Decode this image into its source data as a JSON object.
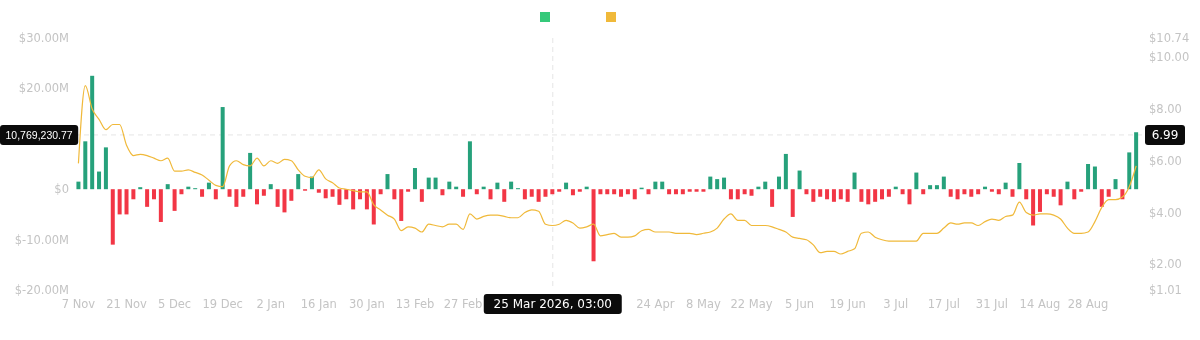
{
  "chart_data": {
    "type": "bar",
    "x": [
      "2025-11-07",
      "2025-11-09",
      "2025-11-11",
      "2025-11-13",
      "2025-11-15",
      "2025-11-17",
      "2025-11-19",
      "2025-11-21",
      "2025-11-23",
      "2025-11-25",
      "2025-11-27",
      "2025-11-29",
      "2025-12-01",
      "2025-12-03",
      "2025-12-05",
      "2025-12-07",
      "2025-12-09",
      "2025-12-11",
      "2025-12-13",
      "2025-12-15",
      "2025-12-17",
      "2025-12-19",
      "2025-12-21",
      "2025-12-23",
      "2025-12-25",
      "2025-12-27",
      "2025-12-29",
      "2025-12-31",
      "2026-01-02",
      "2026-01-04",
      "2026-01-06",
      "2026-01-08",
      "2026-01-10",
      "2026-01-12",
      "2026-01-14",
      "2026-01-16",
      "2026-01-18",
      "2026-01-20",
      "2026-01-22",
      "2026-01-24",
      "2026-01-26",
      "2026-01-28",
      "2026-01-30",
      "2026-02-01",
      "2026-02-03",
      "2026-02-05",
      "2026-02-07",
      "2026-02-09",
      "2026-02-11",
      "2026-02-13",
      "2026-02-15",
      "2026-02-17",
      "2026-02-19",
      "2026-02-21",
      "2026-02-23",
      "2026-02-25",
      "2026-02-27",
      "2026-03-01",
      "2026-03-03",
      "2026-03-05",
      "2026-03-07",
      "2026-03-09",
      "2026-03-11",
      "2026-03-13",
      "2026-03-15",
      "2026-03-17",
      "2026-03-19",
      "2026-03-21",
      "2026-03-23",
      "2026-03-25",
      "2026-03-27",
      "2026-03-29",
      "2026-03-31",
      "2026-04-02",
      "2026-04-04",
      "2026-04-06",
      "2026-04-08",
      "2026-04-10",
      "2026-04-12",
      "2026-04-14",
      "2026-04-16",
      "2026-04-18",
      "2026-04-20",
      "2026-04-22",
      "2026-04-24",
      "2026-04-26",
      "2026-04-28",
      "2026-04-30",
      "2026-05-02",
      "2026-05-04",
      "2026-05-06",
      "2026-05-08",
      "2026-05-10",
      "2026-05-12",
      "2026-05-14",
      "2026-05-16",
      "2026-05-18",
      "2026-05-20",
      "2026-05-22",
      "2026-05-24",
      "2026-05-26",
      "2026-05-28",
      "2026-05-30",
      "2026-06-01",
      "2026-06-03",
      "2026-06-05",
      "2026-06-07",
      "2026-06-09",
      "2026-06-11",
      "2026-06-13",
      "2026-06-15",
      "2026-06-17",
      "2026-06-19",
      "2026-06-21",
      "2026-06-23",
      "2026-06-25",
      "2026-06-27",
      "2026-06-29",
      "2026-07-01",
      "2026-07-03",
      "2026-07-05",
      "2026-07-07",
      "2026-07-09",
      "2026-07-11",
      "2026-07-13",
      "2026-07-15",
      "2026-07-17",
      "2026-07-19",
      "2026-07-21",
      "2026-07-23",
      "2026-07-25",
      "2026-07-27",
      "2026-07-29",
      "2026-07-31",
      "2026-08-02",
      "2026-08-04",
      "2026-08-06",
      "2026-08-08",
      "2026-08-10",
      "2026-08-12",
      "2026-08-14",
      "2026-08-16",
      "2026-08-18",
      "2026-08-20",
      "2026-08-22",
      "2026-08-24",
      "2026-08-26",
      "2026-08-28",
      "2026-08-30",
      "2026-09-01",
      "2026-09-03",
      "2026-09-05",
      "2026-09-07",
      "2026-09-09",
      "2026-09-11"
    ],
    "series": [
      {
        "color": "#35c97a",
        "values": [
          1.5,
          9.5,
          22.5,
          3.5,
          8.3,
          -11,
          -5,
          -5,
          -2,
          0.4,
          -3.5,
          -2,
          -6.5,
          1,
          -4.3,
          -1,
          0.5,
          0.2,
          -1.5,
          1.3,
          -2,
          16.3,
          -1.5,
          -3.5,
          -1.5,
          7.2,
          -3,
          -1.3,
          1,
          -3.5,
          -4.6,
          -2.3,
          3,
          -0.3,
          2.5,
          -0.7,
          -1.8,
          -1.5,
          -3.1,
          -2,
          -4,
          -2,
          -4,
          -7,
          -1,
          3,
          -2,
          -6.3,
          -0.5,
          4.2,
          -2.5,
          2.3,
          2.3,
          -1.2,
          1.5,
          0.5,
          -1.5,
          9.5,
          -1,
          0.5,
          -2,
          1.3,
          -2.5,
          1.5,
          0.2,
          -2,
          -1.5,
          -2.5,
          -1.5,
          -1,
          -0.5,
          1.3,
          -1.2,
          -0.5,
          0.5,
          -14.3,
          -1,
          -1,
          -1,
          -1.5,
          -1,
          -2,
          0.3,
          -1,
          1.5,
          1.5,
          -1,
          -1,
          -1,
          -0.5,
          -0.5,
          -0.5,
          2.5,
          2,
          2.3,
          -2,
          -2,
          -1,
          -1.3,
          0.5,
          1.5,
          -3.5,
          2.5,
          7,
          -5.5,
          3.7,
          -1,
          -2.5,
          -1.5,
          -2,
          -2.5,
          -2,
          -2.5,
          3.3,
          -2.5,
          -3,
          -2.5,
          -2,
          -1.5,
          0.5,
          -1,
          -3,
          3.3,
          -1,
          0.8,
          0.8,
          2.5,
          -1.5,
          -2,
          -1,
          -1.5,
          -1,
          0.5,
          -0.5,
          -1,
          1.3,
          -1.5,
          5.2,
          -2,
          -7.2,
          -4.5,
          -1,
          -1.5,
          -3.2,
          1.5,
          -2,
          -0.5,
          5,
          4.5,
          -3.5,
          -1.5,
          2,
          -2,
          7.3,
          11.3
        ],
        "colors": [
          "#26a17b",
          "#26a17b",
          "#26a17b",
          "#26a17b",
          "#26a17b",
          "#f23645",
          "#f23645",
          "#f23645",
          "#f23645",
          "#26a17b",
          "#f23645",
          "#f23645",
          "#f23645",
          "#26a17b",
          "#f23645",
          "#f23645",
          "#26a17b",
          "#26a17b",
          "#f23645",
          "#26a17b",
          "#f23645",
          "#26a17b",
          "#f23645",
          "#f23645",
          "#f23645",
          "#26a17b",
          "#f23645",
          "#f23645",
          "#26a17b",
          "#f23645",
          "#f23645",
          "#f23645",
          "#26a17b",
          "#f23645",
          "#26a17b",
          "#f23645",
          "#f23645",
          "#f23645",
          "#f23645",
          "#f23645",
          "#f23645",
          "#f23645",
          "#f23645",
          "#f23645",
          "#f23645",
          "#26a17b",
          "#f23645",
          "#f23645",
          "#f23645",
          "#26a17b",
          "#f23645",
          "#26a17b",
          "#26a17b",
          "#f23645",
          "#26a17b",
          "#26a17b",
          "#f23645",
          "#26a17b",
          "#f23645",
          "#26a17b",
          "#f23645",
          "#26a17b",
          "#f23645",
          "#26a17b",
          "#26a17b",
          "#f23645",
          "#f23645",
          "#f23645",
          "#f23645",
          "#f23645",
          "#f23645",
          "#26a17b",
          "#f23645",
          "#f23645",
          "#26a17b",
          "#f23645",
          "#f23645",
          "#f23645",
          "#f23645",
          "#f23645",
          "#f23645",
          "#f23645",
          "#26a17b",
          "#f23645",
          "#26a17b",
          "#26a17b",
          "#f23645",
          "#f23645",
          "#f23645",
          "#f23645",
          "#f23645",
          "#f23645",
          "#26a17b",
          "#26a17b",
          "#26a17b",
          "#f23645",
          "#f23645",
          "#f23645",
          "#f23645",
          "#26a17b",
          "#26a17b",
          "#f23645",
          "#26a17b",
          "#26a17b",
          "#f23645",
          "#26a17b",
          "#f23645",
          "#f23645",
          "#f23645",
          "#f23645",
          "#f23645",
          "#f23645",
          "#f23645",
          "#26a17b",
          "#f23645",
          "#f23645",
          "#f23645",
          "#f23645",
          "#f23645",
          "#26a17b",
          "#f23645",
          "#f23645",
          "#26a17b",
          "#f23645",
          "#26a17b",
          "#26a17b",
          "#26a17b",
          "#f23645",
          "#f23645",
          "#f23645",
          "#f23645",
          "#f23645",
          "#26a17b",
          "#f23645",
          "#f23645",
          "#26a17b",
          "#f23645",
          "#26a17b",
          "#f23645",
          "#f23645",
          "#f23645",
          "#f23645",
          "#f23645",
          "#f23645",
          "#26a17b",
          "#f23645",
          "#f23645",
          "#26a17b",
          "#26a17b",
          "#f23645",
          "#f23645",
          "#26a17b",
          "#f23645",
          "#26a17b",
          "#26a17b"
        ]
      },
      {
        "type": "line",
        "axis": "y2",
        "color": "#f0b93a",
        "values": [
          5.9,
          8.9,
          8.0,
          7.6,
          7.2,
          7.4,
          7.4,
          6.6,
          6.2,
          6.25,
          6.2,
          6.1,
          6.0,
          6.1,
          5.6,
          5.6,
          5.65,
          5.55,
          5.45,
          5.25,
          5.05,
          5.0,
          5.8,
          6.0,
          5.85,
          5.8,
          6.1,
          5.8,
          6.0,
          5.9,
          6.05,
          6.0,
          5.65,
          5.4,
          5.35,
          5.65,
          5.3,
          5.15,
          4.95,
          4.9,
          4.85,
          4.8,
          4.8,
          4.3,
          4.1,
          3.9,
          3.75,
          3.3,
          3.45,
          3.4,
          3.25,
          3.55,
          3.5,
          3.45,
          3.55,
          3.55,
          3.35,
          3.95,
          3.75,
          3.85,
          3.9,
          3.9,
          3.85,
          3.8,
          3.8,
          4.0,
          4.1,
          4.05,
          3.55,
          3.5,
          3.55,
          3.7,
          3.6,
          3.4,
          3.45,
          3.55,
          3.1,
          3.15,
          3.2,
          3.05,
          3.05,
          3.1,
          3.3,
          3.35,
          3.25,
          3.25,
          3.25,
          3.2,
          3.2,
          3.2,
          3.15,
          3.2,
          3.25,
          3.4,
          3.75,
          3.95,
          3.7,
          3.7,
          3.5,
          3.5,
          3.5,
          3.45,
          3.35,
          3.25,
          3.05,
          3.0,
          2.95,
          2.75,
          2.45,
          2.5,
          2.5,
          2.4,
          2.5,
          2.6,
          3.2,
          3.25,
          3.05,
          2.95,
          2.9,
          2.9,
          2.9,
          2.9,
          2.9,
          3.2,
          3.2,
          3.2,
          3.4,
          3.6,
          3.55,
          3.6,
          3.6,
          3.5,
          3.65,
          3.75,
          3.7,
          3.85,
          3.9,
          4.4,
          4.0,
          3.9,
          3.95,
          3.95,
          3.9,
          3.75,
          3.4,
          3.2,
          3.2,
          3.25,
          3.65,
          4.2,
          4.5,
          4.5,
          4.6,
          5.0,
          5.8
        ]
      }
    ],
    "xlim": [
      "2025-11-06",
      "2026-09-13"
    ],
    "xticks": [
      {
        "value": "2025-11-07",
        "label": "7 Nov"
      },
      {
        "value": "2025-11-21",
        "label": "21 Nov"
      },
      {
        "value": "2025-12-05",
        "label": "5 Dec"
      },
      {
        "value": "2025-12-19",
        "label": "19 Dec"
      },
      {
        "value": "2026-01-02",
        "label": "2 Jan"
      },
      {
        "value": "2026-01-16",
        "label": "16 Jan"
      },
      {
        "value": "2026-01-30",
        "label": "30 Jan"
      },
      {
        "value": "2026-02-13",
        "label": "13 Feb"
      },
      {
        "value": "2026-02-27",
        "label": "27 Feb"
      },
      {
        "value": "2026-04-24",
        "label": "24 Apr"
      },
      {
        "value": "2026-05-08",
        "label": "8 May"
      },
      {
        "value": "2026-05-22",
        "label": "22 May"
      },
      {
        "value": "2026-06-05",
        "label": "5 Jun"
      },
      {
        "value": "2026-06-19",
        "label": "19 Jun"
      },
      {
        "value": "2026-07-03",
        "label": "3 Jul"
      },
      {
        "value": "2026-07-17",
        "label": "17 Jul"
      },
      {
        "value": "2026-07-31",
        "label": "31 Jul"
      },
      {
        "value": "2026-08-14",
        "label": "14 Aug"
      },
      {
        "value": "2026-08-28",
        "label": "28 Aug"
      }
    ],
    "ylim": [
      -20,
      30
    ],
    "yticks": [
      {
        "value": 30,
        "label": "$30.00M"
      },
      {
        "value": 20,
        "label": "$20.00M"
      },
      {
        "value": 0,
        "label": "$0"
      },
      {
        "value": -10,
        "label": "$-10.00M"
      },
      {
        "value": -20,
        "label": "$-20.00M"
      }
    ],
    "y2lim": [
      1.01,
      10.74
    ],
    "y2ticks": [
      {
        "value": 10.74,
        "label": "$10.74"
      },
      {
        "value": 10,
        "label": "$10.00"
      },
      {
        "value": 8,
        "label": "$8.00"
      },
      {
        "value": 6,
        "label": "$6.00"
      },
      {
        "value": 4,
        "label": "$4.00"
      },
      {
        "value": 2,
        "label": "$2.00"
      },
      {
        "value": 1.01,
        "label": "$1.01"
      }
    ],
    "ref_lines": [
      {
        "axis": "x",
        "value": "2026-03-25T03:00",
        "label": "25 Mar 2026, 03:00",
        "color": "#e6e6e6",
        "line_style": "dashed"
      },
      {
        "axis": "y",
        "value": 10.76923077,
        "label": "10,769,230.77",
        "color": "#e6e6e6",
        "line_style": "dashed"
      }
    ],
    "annotations": [
      "6.99"
    ],
    "grid": false
  }
}
